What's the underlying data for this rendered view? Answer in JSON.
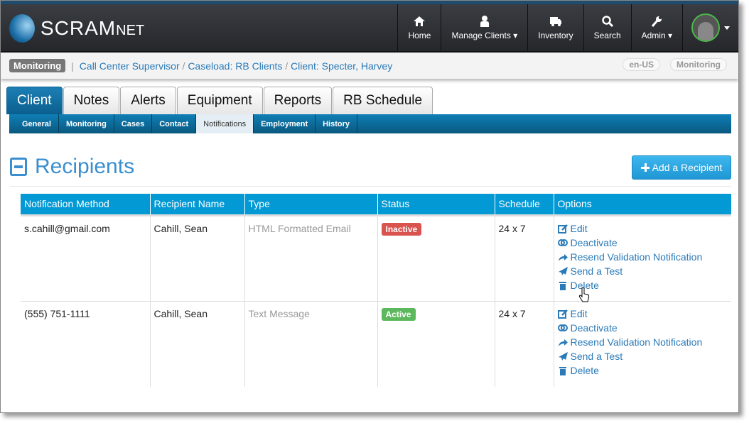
{
  "brand": {
    "name": "SCRAM",
    "suffix": "NET"
  },
  "nav": [
    {
      "label": "Home",
      "icon": "home-icon"
    },
    {
      "label": "Manage Clients ▾",
      "icon": "user-icon"
    },
    {
      "label": "Inventory",
      "icon": "truck-icon"
    },
    {
      "label": "Search",
      "icon": "search-icon"
    },
    {
      "label": "Admin ▾",
      "icon": "wrench-icon"
    }
  ],
  "breadcrumb": {
    "badge": "Monitoring",
    "items": [
      "Call Center Supervisor",
      "Caseload: RB Clients",
      "Client: Specter, Harvey"
    ],
    "locale": "en-US",
    "mode": "Monitoring"
  },
  "tabs": [
    "Client",
    "Notes",
    "Alerts",
    "Equipment",
    "Reports",
    "RB Schedule"
  ],
  "subtabs": [
    "General",
    "Monitoring",
    "Cases",
    "Contact",
    "Notifications",
    "Employment",
    "History"
  ],
  "section": {
    "title": "Recipients",
    "add_label": "Add a Recipient"
  },
  "table": {
    "headers": [
      "Notification Method",
      "Recipient Name",
      "Type",
      "Status",
      "Schedule",
      "Options"
    ],
    "rows": [
      {
        "method": "s.cahill@gmail.com",
        "name": "Cahill, Sean",
        "type": "HTML Formatted Email",
        "status": "Inactive",
        "schedule": "24 x 7"
      },
      {
        "method": "(555) 751-1111",
        "name": "Cahill, Sean",
        "type": "Text Message",
        "status": "Active",
        "schedule": "24 x 7"
      }
    ],
    "options": [
      "Edit",
      "Deactivate",
      "Resend Validation Notification",
      "Send a Test",
      "Delete"
    ]
  },
  "colors": {
    "inactive": "#d9534f",
    "active": "#5cb85c",
    "header": "#0399d4",
    "link": "#2a7ab8"
  }
}
